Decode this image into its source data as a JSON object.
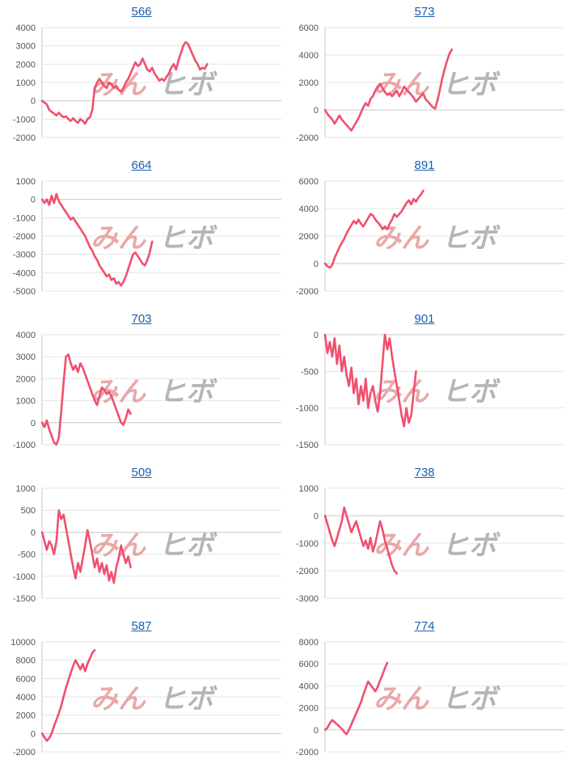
{
  "watermark": {
    "text_a": "みん",
    "text_b": "ヒボ"
  },
  "colors": {
    "line": "#f0506e",
    "title": "#1a5fb4",
    "grid": "#e6e6e6",
    "zero": "#c8c8c8"
  },
  "chart_data": [
    {
      "type": "line",
      "title": "566",
      "ylim": [
        -2000,
        4000
      ],
      "yticks": [
        4000,
        3000,
        2000,
        1000,
        0,
        -1000,
        -2000
      ],
      "x_max": 100,
      "series": [
        {
          "values": [
            0,
            -100,
            -200,
            -500,
            -600,
            -700,
            -800,
            -650,
            -800,
            -900,
            -850,
            -1000,
            -1100,
            -950,
            -1100,
            -1200,
            -1000,
            -1100,
            -1250,
            -1000,
            -900,
            -500,
            700,
            1000,
            1200,
            1000,
            800,
            700,
            1000,
            900,
            700,
            800,
            600,
            500,
            700,
            1000,
            1200,
            1500,
            1800,
            2100,
            1900,
            2000,
            2300,
            2000,
            1700,
            1600,
            1800,
            1500,
            1300,
            1100,
            1200,
            1100,
            1300,
            1500,
            1800,
            2000,
            1700,
            2200,
            2600,
            3000,
            3200,
            3100,
            2800,
            2500,
            2200,
            2000,
            1700,
            1800,
            1750,
            2000
          ]
        }
      ]
    },
    {
      "type": "line",
      "title": "573",
      "ylim": [
        -2000,
        6000
      ],
      "yticks": [
        6000,
        4000,
        2000,
        0,
        -2000
      ],
      "x_max": 100,
      "series": [
        {
          "values": [
            0,
            -300,
            -500,
            -700,
            -1000,
            -700,
            -400,
            -700,
            -900,
            -1100,
            -1300,
            -1500,
            -1200,
            -900,
            -600,
            -200,
            200,
            500,
            300,
            800,
            1000,
            1400,
            1700,
            1900,
            1600,
            1300,
            1100,
            1200,
            1000,
            1200,
            1400,
            1000,
            1300,
            1700,
            1500,
            1300,
            1100,
            900,
            600,
            800,
            1000,
            1200,
            800,
            600,
            400,
            200,
            100,
            700,
            1500,
            2300,
            3000,
            3600,
            4100,
            4400
          ]
        }
      ]
    },
    {
      "type": "line",
      "title": "664",
      "ylim": [
        -5000,
        1000
      ],
      "yticks": [
        1000,
        0,
        -1000,
        -2000,
        -3000,
        -4000,
        -5000
      ],
      "x_max": 100,
      "series": [
        {
          "values": [
            0,
            -200,
            0,
            -300,
            200,
            -200,
            300,
            -100,
            -300,
            -500,
            -700,
            -900,
            -1100,
            -1000,
            -1200,
            -1400,
            -1600,
            -1800,
            -2000,
            -2300,
            -2600,
            -2800,
            -3100,
            -3300,
            -3600,
            -3800,
            -4000,
            -4200,
            -4100,
            -4400,
            -4300,
            -4600,
            -4500,
            -4700,
            -4500,
            -4200,
            -3800,
            -3400,
            -3000,
            -2900,
            -3100,
            -3300,
            -3500,
            -3600,
            -3300,
            -2900,
            -2300
          ]
        }
      ]
    },
    {
      "type": "line",
      "title": "891",
      "ylim": [
        -2000,
        6000
      ],
      "yticks": [
        6000,
        4000,
        2000,
        0,
        -2000
      ],
      "x_max": 100,
      "series": [
        {
          "values": [
            0,
            -200,
            -300,
            -100,
            400,
            800,
            1200,
            1500,
            1800,
            2200,
            2500,
            2800,
            3100,
            2900,
            3200,
            2900,
            2700,
            3000,
            3300,
            3600,
            3500,
            3200,
            3000,
            2800,
            2500,
            2700,
            2500,
            2900,
            3200,
            3600,
            3400,
            3600,
            3800,
            4100,
            4400,
            4600,
            4300,
            4700,
            4500,
            4800,
            5000,
            5300
          ]
        }
      ]
    },
    {
      "type": "line",
      "title": "703",
      "ylim": [
        -1000,
        4000
      ],
      "yticks": [
        4000,
        3000,
        2000,
        1000,
        0,
        -1000
      ],
      "x_max": 100,
      "series": [
        {
          "values": [
            0,
            -200,
            100,
            -300,
            -600,
            -900,
            -1000,
            -700,
            500,
            1800,
            3000,
            3100,
            2700,
            2400,
            2600,
            2300,
            2700,
            2500,
            2200,
            1900,
            1600,
            1300,
            1000,
            800,
            1200,
            1600,
            1500,
            1300,
            1400,
            1200,
            900,
            600,
            300,
            0,
            -100,
            200,
            600,
            400
          ]
        }
      ]
    },
    {
      "type": "line",
      "title": "901",
      "ylim": [
        -1500,
        0
      ],
      "yticks": [
        0,
        -500,
        -1000,
        -1500
      ],
      "x_max": 100,
      "series": [
        {
          "values": [
            0,
            -250,
            -100,
            -300,
            -50,
            -400,
            -150,
            -500,
            -300,
            -550,
            -700,
            -450,
            -800,
            -600,
            -950,
            -700,
            -900,
            -600,
            -1000,
            -800,
            -700,
            -900,
            -1050,
            -800,
            -400,
            0,
            -200,
            -50,
            -300,
            -500,
            -700,
            -900,
            -1100,
            -1250,
            -1000,
            -1200,
            -1100,
            -800,
            -500
          ]
        }
      ]
    },
    {
      "type": "line",
      "title": "509",
      "ylim": [
        -1500,
        1000
      ],
      "yticks": [
        1000,
        500,
        0,
        -500,
        -1000,
        -1500
      ],
      "x_max": 100,
      "series": [
        {
          "values": [
            0,
            -200,
            -400,
            -200,
            -300,
            -500,
            -200,
            500,
            300,
            400,
            100,
            -200,
            -500,
            -800,
            -1050,
            -700,
            -900,
            -600,
            -300,
            50,
            -200,
            -500,
            -800,
            -600,
            -900,
            -700,
            -950,
            -750,
            -1100,
            -900,
            -1150,
            -800,
            -600,
            -300,
            -500,
            -700,
            -550,
            -800
          ]
        }
      ]
    },
    {
      "type": "line",
      "title": "738",
      "ylim": [
        -3000,
        1000
      ],
      "yticks": [
        1000,
        0,
        -1000,
        -2000,
        -3000
      ],
      "x_max": 100,
      "series": [
        {
          "values": [
            0,
            -300,
            -600,
            -900,
            -1100,
            -800,
            -500,
            -200,
            300,
            0,
            -300,
            -600,
            -400,
            -200,
            -500,
            -800,
            -1100,
            -900,
            -1200,
            -800,
            -1300,
            -1000,
            -600,
            -200,
            -500,
            -900,
            -1200,
            -1500,
            -1800,
            -2000,
            -2100
          ]
        }
      ]
    },
    {
      "type": "line",
      "title": "587",
      "ylim": [
        -2000,
        10000
      ],
      "yticks": [
        10000,
        8000,
        6000,
        4000,
        2000,
        0,
        -2000
      ],
      "x_max": 100,
      "series": [
        {
          "values": [
            0,
            -400,
            -800,
            -500,
            0,
            800,
            1500,
            2200,
            3000,
            4000,
            5000,
            5800,
            6600,
            7400,
            8000,
            7500,
            7000,
            7600,
            6800,
            7600,
            8200,
            8800,
            9100
          ]
        }
      ]
    },
    {
      "type": "line",
      "title": "774",
      "ylim": [
        -2000,
        8000
      ],
      "yticks": [
        8000,
        6000,
        4000,
        2000,
        0,
        -2000
      ],
      "x_max": 100,
      "series": [
        {
          "values": [
            0,
            200,
            600,
            900,
            700,
            500,
            300,
            100,
            -200,
            -400,
            0,
            500,
            1000,
            1500,
            2000,
            2500,
            3200,
            3800,
            4400,
            4100,
            3800,
            3500,
            3900,
            4500,
            5000,
            5600,
            6100
          ]
        }
      ]
    }
  ]
}
